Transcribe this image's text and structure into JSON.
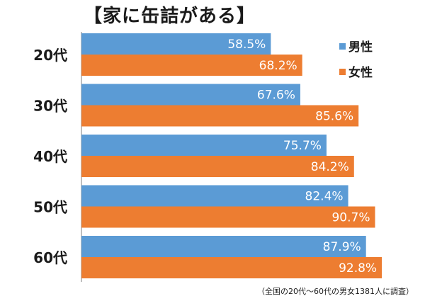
{
  "chart_data": {
    "type": "bar",
    "orientation": "horizontal",
    "title": "【家に缶詰がある】",
    "categories": [
      "20代",
      "30代",
      "40代",
      "50代",
      "60代"
    ],
    "series": [
      {
        "name": "男性",
        "color": "#5b9bd5",
        "values": [
          58.5,
          67.6,
          75.7,
          82.4,
          87.9
        ],
        "labels": [
          "58.5%",
          "67.6%",
          "75.7%",
          "82.4%",
          "87.9%"
        ]
      },
      {
        "name": "女性",
        "color": "#ed7d31",
        "values": [
          68.2,
          85.6,
          84.2,
          90.7,
          92.8
        ],
        "labels": [
          "68.2%",
          "85.6%",
          "84.2%",
          "90.7%",
          "92.8%"
        ]
      }
    ],
    "xlim": [
      0,
      100
    ],
    "legend_position": "top-right",
    "note": "（全国の20代～60代の男女1381人に調査）"
  }
}
